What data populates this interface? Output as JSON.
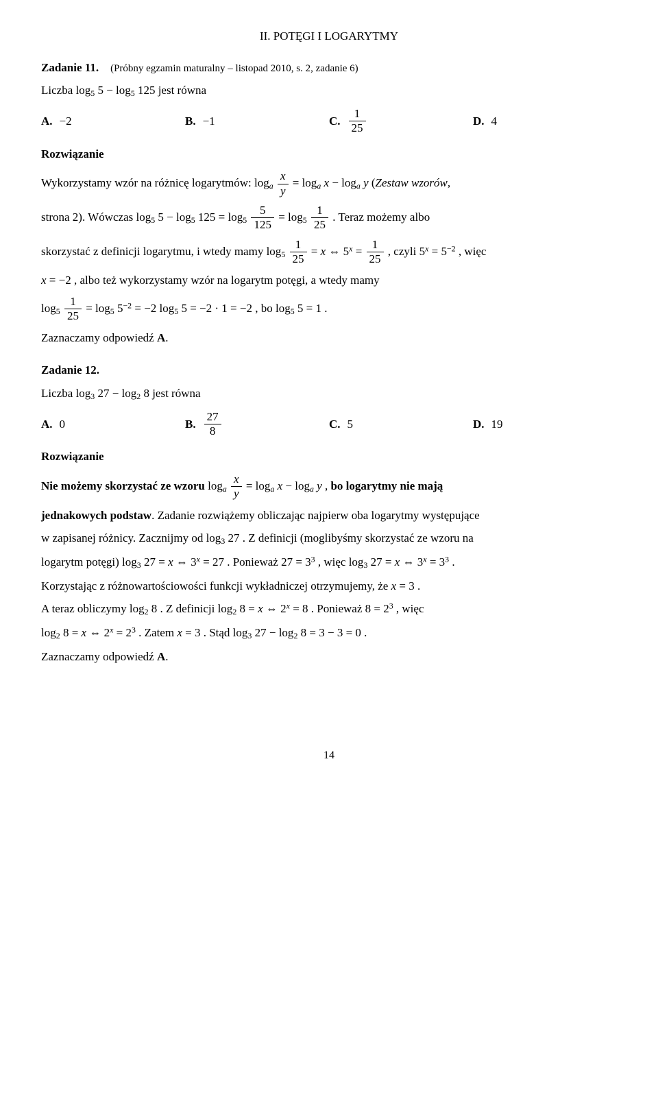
{
  "header": "II. POTĘGI I LOGARYTMY",
  "task11": {
    "title_bold": "Zadanie 11.",
    "title_src": "(Próbny egzamin maturalny – listopad 2010, s. 2, zadanie 6)",
    "intro_pre": "Liczba ",
    "intro_math": "log<sub class=\"ss\">5</sub> 5 − log<sub class=\"ss\">5</sub> 125",
    "intro_post": " jest równa",
    "optA_label": "A.",
    "optA_val": "−2",
    "optB_label": "B.",
    "optB_val": "−1",
    "optC_label": "C.",
    "optC_val_num": "1",
    "optC_val_den": "25",
    "optD_label": "D.",
    "optD_val": "4",
    "solution_label": "Rozwiązanie",
    "p1": "Wykorzystamy wzór na różnicę logarytmów: log<sub class=\"ss\"><span class=\"italic\">a</span></sub> <span class=\"frac\"><span class=\"num\"><span class=\"italic\">x</span></span><span class=\"den\"><span class=\"italic\">y</span></span></span> = log<sub class=\"ss\"><span class=\"italic\">a</span></sub> <span class=\"italic\">x</span> − log<sub class=\"ss\"><span class=\"italic\">a</span></sub> <span class=\"italic\">y</span>  (<span class=\"italic\">Zestaw wzorów</span>,",
    "p2": "strona 2). Wówczas log<sub class=\"ss\">5</sub> 5 − log<sub class=\"ss\">5</sub> 125 = log<sub class=\"ss\">5</sub> <span class=\"frac\"><span class=\"num\">5</span><span class=\"den\">125</span></span> = log<sub class=\"ss\">5</sub> <span class=\"frac\"><span class=\"num\">1</span><span class=\"den\">25</span></span> . Teraz możemy albo",
    "p3": "skorzystać z definicji logarytmu, i wtedy mamy log<sub class=\"ss\">5</sub> <span class=\"frac\"><span class=\"num\">1</span><span class=\"den\">25</span></span> = <span class=\"italic\">x</span> ⇔ 5<sup class=\"ss\"><span class=\"italic\">x</span></sup> = <span class=\"frac\"><span class=\"num\">1</span><span class=\"den\">25</span></span> , czyli 5<sup class=\"ss\"><span class=\"italic\">x</span></sup> = 5<sup class=\"ss\">−2</sup> , więc",
    "p4": "<span class=\"italic\">x</span> = −2 , albo też wykorzystamy wzór na logarytm potęgi, a wtedy mamy",
    "p5": "log<sub class=\"ss\">5</sub> <span class=\"frac\"><span class=\"num\">1</span><span class=\"den\">25</span></span> = log<sub class=\"ss\">5</sub> 5<sup class=\"ss\">−2</sup> = −2 log<sub class=\"ss\">5</sub> 5 = −2 · 1 = −2 , bo log<sub class=\"ss\">5</sub> 5 = 1 .",
    "p6": "Zaznaczamy odpowiedź <b>A</b>."
  },
  "task12": {
    "title_bold": "Zadanie 12.",
    "intro_pre": "Liczba ",
    "intro_math": "log<sub class=\"ss\">3</sub> 27 − log<sub class=\"ss\">2</sub> 8",
    "intro_post": " jest równa",
    "optA_label": "A.",
    "optA_val": "0",
    "optB_label": "B.",
    "optB_val_num": "27",
    "optB_val_den": "8",
    "optC_label": "C.",
    "optC_val": "5",
    "optD_label": "D.",
    "optD_val": "19",
    "solution_label": "Rozwiązanie",
    "p1": "<b>Nie możemy skorzystać ze wzoru</b> log<sub class=\"ss\"><span class=\"italic\">a</span></sub> <span class=\"frac\"><span class=\"num\"><span class=\"italic\">x</span></span><span class=\"den\"><span class=\"italic\">y</span></span></span> = log<sub class=\"ss\"><span class=\"italic\">a</span></sub> <span class=\"italic\">x</span> − log<sub class=\"ss\"><span class=\"italic\">a</span></sub> <span class=\"italic\">y</span> , <b>bo logarytmy nie mają</b>",
    "p2": "<b>jednakowych podstaw</b>. Zadanie rozwiążemy obliczając najpierw oba logarytmy występujące",
    "p3": "w zapisanej różnicy. Zacznijmy od log<sub class=\"ss\">3</sub> 27 . Z definicji (moglibyśmy skorzystać ze wzoru na",
    "p4": "logarytm potęgi) log<sub class=\"ss\">3</sub> 27 = <span class=\"italic\">x</span> ⇔ 3<sup class=\"ss\"><span class=\"italic\">x</span></sup> = 27 . Ponieważ 27 = 3<sup class=\"ss\">3</sup> , więc log<sub class=\"ss\">3</sub> 27 = <span class=\"italic\">x</span> ⇔ 3<sup class=\"ss\"><span class=\"italic\">x</span></sup> = 3<sup class=\"ss\">3</sup> .",
    "p5": "Korzystając z różnowartościowości funkcji wykładniczej otrzymujemy, że <span class=\"italic\">x</span> = 3 .",
    "p6": "A teraz obliczymy log<sub class=\"ss\">2</sub> 8 . Z definicji log<sub class=\"ss\">2</sub> 8 = <span class=\"italic\">x</span> ⇔ 2<sup class=\"ss\"><span class=\"italic\">x</span></sup> = 8 . Ponieważ 8 = 2<sup class=\"ss\">3</sup> , więc",
    "p7": "log<sub class=\"ss\">2</sub> 8 = <span class=\"italic\">x</span> ⇔ 2<sup class=\"ss\"><span class=\"italic\">x</span></sup> = 2<sup class=\"ss\">3</sup> . Zatem <span class=\"italic\">x</span> = 3 . Stąd log<sub class=\"ss\">3</sub> 27 − log<sub class=\"ss\">2</sub> 8 = 3 − 3 = 0 .",
    "p8": "Zaznaczamy odpowiedź <b>A</b>."
  },
  "page_number": "14"
}
